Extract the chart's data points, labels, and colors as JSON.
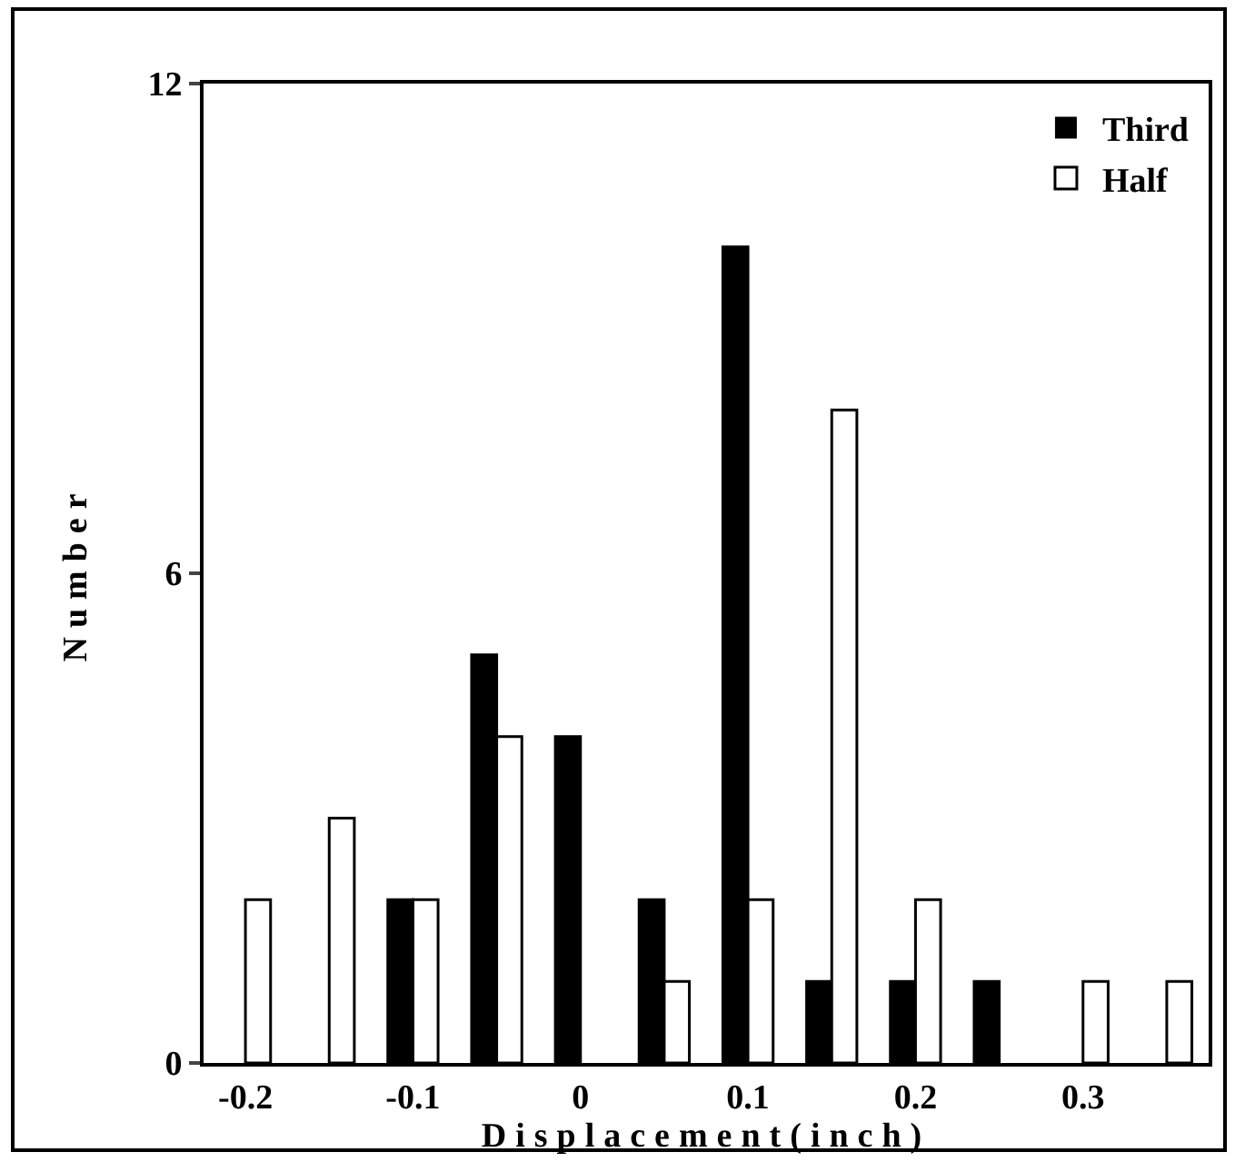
{
  "chart_data": {
    "type": "bar",
    "xlabel": "Displacement(inch)",
    "ylabel": "Number",
    "categories": [
      "-0.2",
      null,
      "-0.1",
      null,
      "0",
      null,
      "0.1",
      null,
      "0.2",
      null,
      "0.3",
      null
    ],
    "series": [
      {
        "name": "Third",
        "color": "#000000",
        "values": [
          0,
          0,
          2,
          5,
          4,
          2,
          10,
          1,
          1,
          1,
          0,
          0
        ]
      },
      {
        "name": "Half",
        "color": "#ffffff",
        "values": [
          2,
          3,
          2,
          4,
          0,
          1,
          2,
          8,
          2,
          0,
          1,
          1
        ]
      }
    ],
    "ylim": [
      0,
      12
    ],
    "yticks": [
      0,
      6,
      12
    ],
    "grid": false,
    "legend": "top right"
  }
}
